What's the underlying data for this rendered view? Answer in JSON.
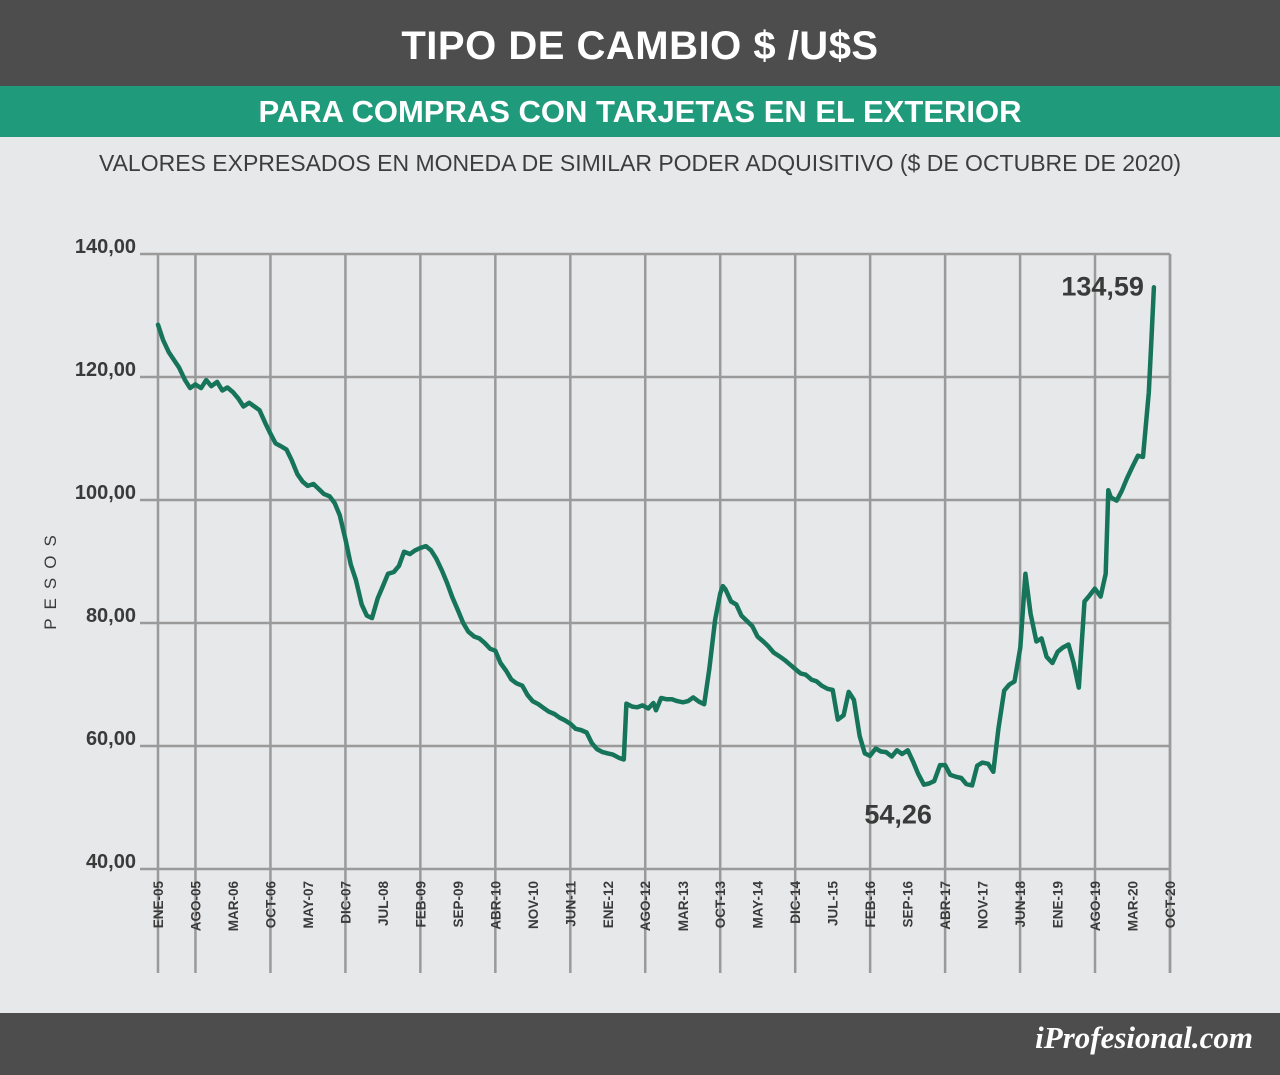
{
  "header": {
    "title": "TIPO DE CAMBIO $ /U$S",
    "subtitle": "PARA COMPRAS CON TARJETAS EN EL EXTERIOR",
    "caption": "VALORES EXPRESADOS EN MONEDA DE SIMILAR PODER ADQUISITIVO ($ DE OCTUBRE DE 2020)"
  },
  "footer": {
    "brand": "iProfesional.com"
  },
  "colors": {
    "banner": "#4d4d4d",
    "accent": "#1f9a7b",
    "line": "#16745a",
    "grid": "#9a9a9a",
    "background": "#e7e8e9"
  },
  "chart_data": {
    "type": "line",
    "title": "TIPO DE CAMBIO $ /U$S",
    "subtitle": "PARA COMPRAS CON TARJETAS EN EL EXTERIOR",
    "ylabel": "PESOS",
    "ylim": [
      40,
      140
    ],
    "xlim": [
      2005.0,
      2020.75
    ],
    "grid": true,
    "y_ticks": [
      "40,00",
      "60,00",
      "80,00",
      "100,00",
      "120,00",
      "140,00"
    ],
    "x_ticks": [
      {
        "label": "ENE-05",
        "x": 2005.0
      },
      {
        "label": "AGO-05",
        "x": 2005.583
      },
      {
        "label": "MAR-06",
        "x": 2006.167
      },
      {
        "label": "OCT-06",
        "x": 2006.75
      },
      {
        "label": "MAY-07",
        "x": 2007.333
      },
      {
        "label": "DIC-07",
        "x": 2007.917
      },
      {
        "label": "JUL-08",
        "x": 2008.5
      },
      {
        "label": "FEB-09",
        "x": 2009.083
      },
      {
        "label": "SEP-09",
        "x": 2009.667
      },
      {
        "label": "ABR-10",
        "x": 2010.25
      },
      {
        "label": "NOV-10",
        "x": 2010.833
      },
      {
        "label": "JUN-11",
        "x": 2011.417
      },
      {
        "label": "ENE-12",
        "x": 2012.0
      },
      {
        "label": "AGO-12",
        "x": 2012.583
      },
      {
        "label": "MAR-13",
        "x": 2013.167
      },
      {
        "label": "OCT-13",
        "x": 2013.75
      },
      {
        "label": "MAY-14",
        "x": 2014.333
      },
      {
        "label": "DIC-14",
        "x": 2014.917
      },
      {
        "label": "JUL-15",
        "x": 2015.5
      },
      {
        "label": "FEB-16",
        "x": 2016.083
      },
      {
        "label": "SEP-16",
        "x": 2016.667
      },
      {
        "label": "ABR-17",
        "x": 2017.25
      },
      {
        "label": "NOV-17",
        "x": 2017.833
      },
      {
        "label": "JUN-18",
        "x": 2018.417
      },
      {
        "label": "ENE-19",
        "x": 2019.0
      },
      {
        "label": "AGO-19",
        "x": 2019.583
      },
      {
        "label": "MAR-20",
        "x": 2020.167
      },
      {
        "label": "OCT-20",
        "x": 2020.75
      }
    ],
    "series": [
      {
        "points": [
          [
            2005.0,
            128.5
          ],
          [
            2005.08,
            126
          ],
          [
            2005.17,
            124
          ],
          [
            2005.33,
            121.5
          ],
          [
            2005.42,
            119.5
          ],
          [
            2005.5,
            118.2
          ],
          [
            2005.58,
            118.8
          ],
          [
            2005.67,
            118.2
          ],
          [
            2005.75,
            119.5
          ],
          [
            2005.83,
            118.5
          ],
          [
            2005.92,
            119.2
          ],
          [
            2006.0,
            117.8
          ],
          [
            2006.08,
            118.3
          ],
          [
            2006.17,
            117.5
          ],
          [
            2006.25,
            116.5
          ],
          [
            2006.33,
            115.2
          ],
          [
            2006.42,
            115.8
          ],
          [
            2006.5,
            115.2
          ],
          [
            2006.58,
            114.6
          ],
          [
            2006.67,
            112.5
          ],
          [
            2006.75,
            110.8
          ],
          [
            2006.83,
            109.2
          ],
          [
            2006.92,
            108.7
          ],
          [
            2007.0,
            108.2
          ],
          [
            2007.08,
            106.5
          ],
          [
            2007.17,
            104.2
          ],
          [
            2007.25,
            103.0
          ],
          [
            2007.33,
            102.3
          ],
          [
            2007.42,
            102.6
          ],
          [
            2007.5,
            101.8
          ],
          [
            2007.58,
            101.0
          ],
          [
            2007.67,
            100.6
          ],
          [
            2007.75,
            99.5
          ],
          [
            2007.83,
            97.5
          ],
          [
            2007.92,
            93.5
          ],
          [
            2008.0,
            89.5
          ],
          [
            2008.08,
            87.0
          ],
          [
            2008.17,
            83.0
          ],
          [
            2008.25,
            81.2
          ],
          [
            2008.33,
            80.8
          ],
          [
            2008.42,
            84.0
          ],
          [
            2008.5,
            86.0
          ],
          [
            2008.58,
            88.0
          ],
          [
            2008.67,
            88.3
          ],
          [
            2008.75,
            89.3
          ],
          [
            2008.83,
            91.6
          ],
          [
            2008.92,
            91.2
          ],
          [
            2009.0,
            91.8
          ],
          [
            2009.08,
            92.2
          ],
          [
            2009.17,
            92.5
          ],
          [
            2009.25,
            91.8
          ],
          [
            2009.33,
            90.5
          ],
          [
            2009.42,
            88.5
          ],
          [
            2009.5,
            86.5
          ],
          [
            2009.58,
            84.2
          ],
          [
            2009.67,
            82.0
          ],
          [
            2009.75,
            80.0
          ],
          [
            2009.83,
            78.6
          ],
          [
            2009.92,
            77.8
          ],
          [
            2010.0,
            77.5
          ],
          [
            2010.08,
            76.8
          ],
          [
            2010.17,
            75.8
          ],
          [
            2010.25,
            75.5
          ],
          [
            2010.33,
            73.5
          ],
          [
            2010.42,
            72.2
          ],
          [
            2010.5,
            70.8
          ],
          [
            2010.58,
            70.2
          ],
          [
            2010.67,
            69.8
          ],
          [
            2010.75,
            68.3
          ],
          [
            2010.83,
            67.3
          ],
          [
            2010.92,
            66.8
          ],
          [
            2011.0,
            66.2
          ],
          [
            2011.08,
            65.6
          ],
          [
            2011.17,
            65.2
          ],
          [
            2011.25,
            64.6
          ],
          [
            2011.33,
            64.2
          ],
          [
            2011.42,
            63.6
          ],
          [
            2011.5,
            62.8
          ],
          [
            2011.58,
            62.6
          ],
          [
            2011.67,
            62.2
          ],
          [
            2011.75,
            60.5
          ],
          [
            2011.83,
            59.5
          ],
          [
            2011.92,
            59.0
          ],
          [
            2012.0,
            58.8
          ],
          [
            2012.08,
            58.6
          ],
          [
            2012.17,
            58.1
          ],
          [
            2012.25,
            57.8
          ],
          [
            2012.29,
            66.9
          ],
          [
            2012.38,
            66.4
          ],
          [
            2012.46,
            66.3
          ],
          [
            2012.54,
            66.6
          ],
          [
            2012.63,
            66.1
          ],
          [
            2012.71,
            67.0
          ],
          [
            2012.75,
            65.8
          ],
          [
            2012.83,
            67.8
          ],
          [
            2012.92,
            67.6
          ],
          [
            2013.0,
            67.6
          ],
          [
            2013.08,
            67.3
          ],
          [
            2013.17,
            67.1
          ],
          [
            2013.25,
            67.3
          ],
          [
            2013.33,
            67.9
          ],
          [
            2013.42,
            67.2
          ],
          [
            2013.5,
            66.8
          ],
          [
            2013.58,
            72.5
          ],
          [
            2013.67,
            80.5
          ],
          [
            2013.75,
            84.8
          ],
          [
            2013.79,
            86.0
          ],
          [
            2013.83,
            85.5
          ],
          [
            2013.92,
            83.5
          ],
          [
            2014.0,
            83.0
          ],
          [
            2014.08,
            81.2
          ],
          [
            2014.17,
            80.3
          ],
          [
            2014.25,
            79.5
          ],
          [
            2014.33,
            77.8
          ],
          [
            2014.42,
            77.0
          ],
          [
            2014.5,
            76.2
          ],
          [
            2014.58,
            75.2
          ],
          [
            2014.67,
            74.6
          ],
          [
            2014.75,
            74.0
          ],
          [
            2014.83,
            73.3
          ],
          [
            2014.92,
            72.5
          ],
          [
            2015.0,
            71.8
          ],
          [
            2015.08,
            71.6
          ],
          [
            2015.17,
            70.8
          ],
          [
            2015.25,
            70.5
          ],
          [
            2015.33,
            69.8
          ],
          [
            2015.42,
            69.3
          ],
          [
            2015.5,
            69.1
          ],
          [
            2015.58,
            64.3
          ],
          [
            2015.67,
            65.0
          ],
          [
            2015.75,
            68.8
          ],
          [
            2015.83,
            67.5
          ],
          [
            2015.92,
            61.6
          ],
          [
            2016.0,
            58.8
          ],
          [
            2016.08,
            58.4
          ],
          [
            2016.17,
            59.6
          ],
          [
            2016.25,
            59.1
          ],
          [
            2016.33,
            59.0
          ],
          [
            2016.42,
            58.3
          ],
          [
            2016.5,
            59.3
          ],
          [
            2016.58,
            58.7
          ],
          [
            2016.67,
            59.3
          ],
          [
            2016.75,
            57.5
          ],
          [
            2016.83,
            55.5
          ],
          [
            2016.92,
            53.7
          ],
          [
            2017.0,
            53.9
          ],
          [
            2017.08,
            54.3
          ],
          [
            2017.17,
            56.9
          ],
          [
            2017.25,
            56.9
          ],
          [
            2017.33,
            55.3
          ],
          [
            2017.42,
            55.0
          ],
          [
            2017.5,
            54.8
          ],
          [
            2017.58,
            53.8
          ],
          [
            2017.67,
            53.6
          ],
          [
            2017.75,
            56.8
          ],
          [
            2017.83,
            57.3
          ],
          [
            2017.92,
            57.1
          ],
          [
            2018.0,
            55.8
          ],
          [
            2018.08,
            62.8
          ],
          [
            2018.17,
            69.0
          ],
          [
            2018.25,
            70.0
          ],
          [
            2018.33,
            70.5
          ],
          [
            2018.42,
            76.0
          ],
          [
            2018.5,
            88.0
          ],
          [
            2018.58,
            81.5
          ],
          [
            2018.67,
            77.0
          ],
          [
            2018.75,
            77.5
          ],
          [
            2018.83,
            74.5
          ],
          [
            2018.92,
            73.5
          ],
          [
            2019.0,
            75.3
          ],
          [
            2019.08,
            76.0
          ],
          [
            2019.17,
            76.5
          ],
          [
            2019.25,
            73.5
          ],
          [
            2019.33,
            69.5
          ],
          [
            2019.42,
            83.5
          ],
          [
            2019.5,
            84.5
          ],
          [
            2019.58,
            85.6
          ],
          [
            2019.67,
            84.3
          ],
          [
            2019.75,
            88.0
          ],
          [
            2019.79,
            101.6
          ],
          [
            2019.83,
            100.4
          ],
          [
            2019.92,
            99.9
          ],
          [
            2020.0,
            101.5
          ],
          [
            2020.08,
            103.5
          ],
          [
            2020.17,
            105.5
          ],
          [
            2020.25,
            107.2
          ],
          [
            2020.33,
            107.0
          ],
          [
            2020.42,
            117.5
          ],
          [
            2020.46,
            126.0
          ],
          [
            2020.5,
            134.59
          ]
        ]
      }
    ],
    "annotations": [
      {
        "text": "134,59",
        "x": 2020.5,
        "y": 134.59
      },
      {
        "text": "54,26",
        "x": 2016.92,
        "y": 54.26
      }
    ]
  }
}
